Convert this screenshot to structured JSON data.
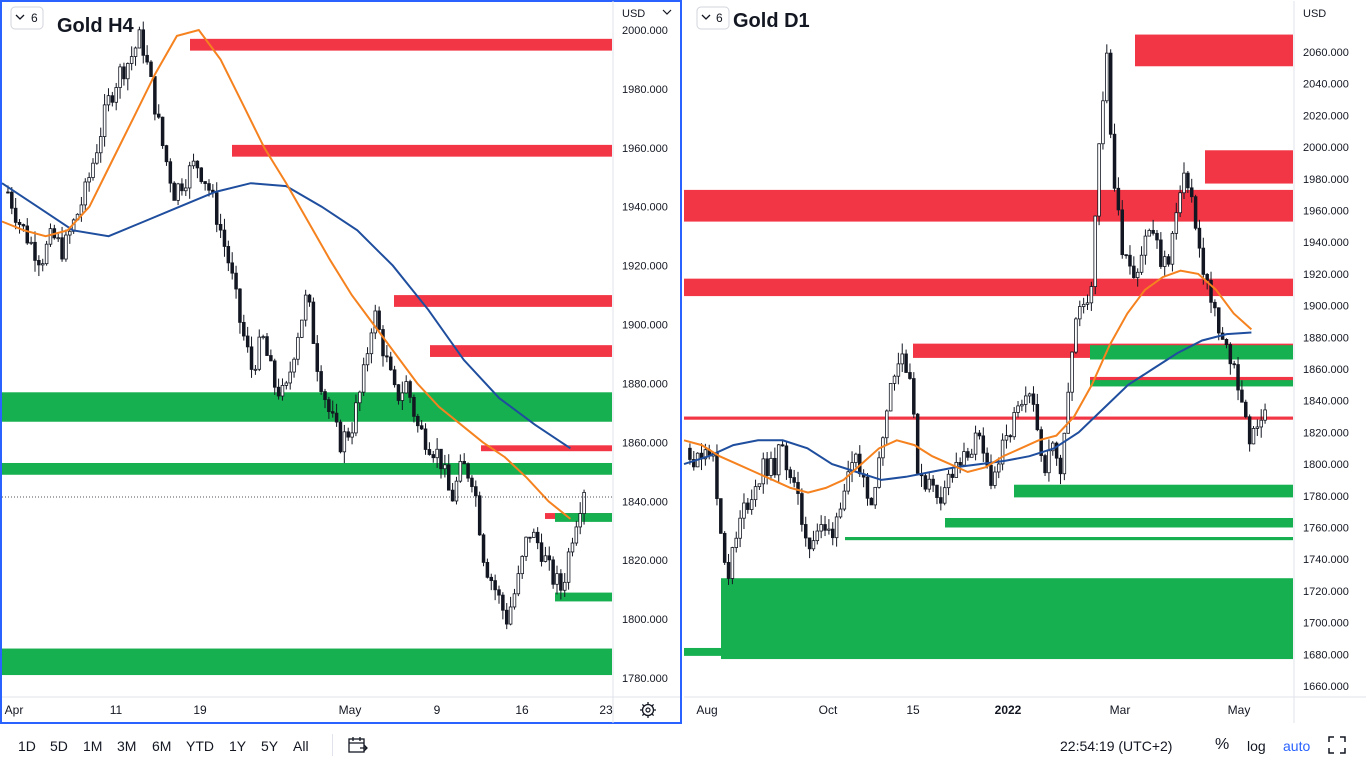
{
  "left_panel": {
    "title": "Gold H4",
    "interval_badge": "6",
    "currency": "USD",
    "price_ticks": [
      "2000.000",
      "1980.000",
      "1960.000",
      "1940.000",
      "1920.000",
      "1900.000",
      "1880.000",
      "1860.000",
      "1840.000",
      "1820.000",
      "1800.000",
      "1780.000"
    ],
    "time_labels": [
      "Apr",
      "11",
      "19",
      "May",
      "9",
      "16",
      "23"
    ],
    "settings_icon": "gear-icon"
  },
  "right_panel": {
    "title": "Gold D1",
    "interval_badge": "6",
    "currency": "USD",
    "price_ticks": [
      "2060.000",
      "2040.000",
      "2020.000",
      "2000.000",
      "1980.000",
      "1960.000",
      "1940.000",
      "1920.000",
      "1900.000",
      "1880.000",
      "1860.000",
      "1840.000",
      "1820.000",
      "1800.000",
      "1780.000",
      "1760.000",
      "1740.000",
      "1720.000",
      "1700.000",
      "1680.000",
      "1660.000"
    ],
    "time_labels": [
      "Aug",
      "Oct",
      "15",
      "2022",
      "Mar",
      "May"
    ]
  },
  "toolbar": {
    "ranges": [
      "1D",
      "5D",
      "1M",
      "3M",
      "6M",
      "YTD",
      "1Y",
      "5Y",
      "All"
    ],
    "clock": "22:54:19 (UTC+2)",
    "percent_label": "%",
    "log_label": "log",
    "auto_label": "auto"
  },
  "colors": {
    "bull_zone": "#17b050",
    "bear_zone": "#f23645",
    "ma_fast": "#f5821f",
    "ma_slow": "#1f4e9e",
    "candle": "#131722",
    "active_border": "#2962ff"
  },
  "chart_data": [
    {
      "type": "candlestick",
      "title": "Gold H4",
      "ylim": [
        1774,
        2004
      ],
      "x_ticks": [
        "Apr",
        "11",
        "19",
        "May",
        "9",
        "16",
        "23"
      ],
      "price_path": [
        1945,
        1935,
        1928,
        1922,
        1930,
        1925,
        1935,
        1945,
        1960,
        1975,
        1985,
        1990,
        1998,
        1980,
        1960,
        1945,
        1950,
        1955,
        1948,
        1935,
        1920,
        1900,
        1885,
        1895,
        1880,
        1875,
        1895,
        1910,
        1885,
        1870,
        1860,
        1865,
        1880,
        1905,
        1890,
        1875,
        1880,
        1865,
        1860,
        1855,
        1840,
        1852,
        1848,
        1820,
        1810,
        1800,
        1812,
        1830,
        1825,
        1815,
        1810,
        1830,
        1845
      ],
      "ma_fast": [
        1935,
        1932,
        1930,
        1932,
        1940,
        1955,
        1970,
        1985,
        1998,
        2000,
        1990,
        1975,
        1960,
        1948,
        1935,
        1922,
        1910,
        1900,
        1890,
        1880,
        1872,
        1866,
        1860,
        1855,
        1848,
        1840,
        1834
      ],
      "ma_slow": [
        1948,
        1940,
        1932,
        1930,
        1935,
        1940,
        1945,
        1948,
        1947,
        1940,
        1932,
        1920,
        1905,
        1888,
        1875,
        1866,
        1858
      ],
      "zones": [
        {
          "kind": "supply",
          "from_date": "Apr 19",
          "top": 1997,
          "bottom": 1993
        },
        {
          "kind": "supply",
          "from_date": "Apr 22",
          "top": 1961,
          "bottom": 1957
        },
        {
          "kind": "supply",
          "from_date": "May 6",
          "top": 1910,
          "bottom": 1906
        },
        {
          "kind": "supply",
          "from_date": "May 10",
          "top": 1893,
          "bottom": 1889
        },
        {
          "kind": "supply",
          "from_date": "May 12",
          "top": 1859,
          "bottom": 1857
        },
        {
          "kind": "supply",
          "from_date": "May 18",
          "top": 1836,
          "bottom": 1834
        },
        {
          "kind": "demand",
          "from_date": "Apr 1",
          "top": 1877,
          "bottom": 1867
        },
        {
          "kind": "demand",
          "from_date": "Apr 1",
          "top": 1853,
          "bottom": 1849
        },
        {
          "kind": "demand",
          "from_date": "May 19",
          "top": 1836,
          "bottom": 1833
        },
        {
          "kind": "demand",
          "from_date": "May 19",
          "top": 1809,
          "bottom": 1806
        },
        {
          "kind": "demand",
          "from_date": "Apr 1",
          "top": 1790,
          "bottom": 1781
        }
      ]
    },
    {
      "type": "candlestick",
      "title": "Gold D1",
      "ylim": [
        1655,
        2078
      ],
      "x_ticks": [
        "Aug",
        "Oct",
        "15",
        "2022",
        "Mar",
        "May"
      ],
      "price_path": [
        1810,
        1800,
        1815,
        1805,
        1760,
        1730,
        1750,
        1770,
        1780,
        1790,
        1800,
        1795,
        1810,
        1800,
        1780,
        1760,
        1750,
        1760,
        1755,
        1760,
        1780,
        1790,
        1800,
        1790,
        1780,
        1800,
        1840,
        1860,
        1870,
        1860,
        1800,
        1790,
        1785,
        1780,
        1790,
        1795,
        1800,
        1810,
        1815,
        1800,
        1790,
        1805,
        1815,
        1830,
        1835,
        1840,
        1820,
        1800,
        1810,
        1800,
        1850,
        1890,
        1900,
        1910,
        2000,
        2060,
        1980,
        1940,
        1930,
        1920,
        1940,
        1950,
        1930,
        1925,
        1950,
        1975,
        1980,
        1940,
        1920,
        1900,
        1880,
        1870,
        1860,
        1840,
        1815,
        1820,
        1840
      ],
      "ma_fast": [
        1815,
        1812,
        1805,
        1800,
        1795,
        1790,
        1785,
        1782,
        1785,
        1790,
        1800,
        1810,
        1815,
        1812,
        1805,
        1800,
        1795,
        1798,
        1805,
        1810,
        1815,
        1818,
        1830,
        1850,
        1875,
        1895,
        1910,
        1918,
        1922,
        1920,
        1910,
        1895,
        1885
      ],
      "ma_slow": [
        1800,
        1805,
        1812,
        1815,
        1815,
        1810,
        1800,
        1795,
        1790,
        1792,
        1795,
        1798,
        1800,
        1802,
        1805,
        1810,
        1820,
        1835,
        1850,
        1860,
        1870,
        1878,
        1882,
        1883
      ],
      "zones": [
        {
          "kind": "supply",
          "from_date": "Mar 7",
          "top": 2071,
          "bottom": 2051
        },
        {
          "kind": "supply",
          "from_date": "Apr 18",
          "top": 1998,
          "bottom": 1977
        },
        {
          "kind": "supply",
          "from_date": "Jul",
          "top": 1973,
          "bottom": 1953
        },
        {
          "kind": "supply",
          "from_date": "Jul",
          "top": 1917,
          "bottom": 1906
        },
        {
          "kind": "supply",
          "from_date": "Nov 16",
          "top": 1876,
          "bottom": 1867
        },
        {
          "kind": "supply",
          "from_date": "Feb",
          "top": 1855,
          "bottom": 1850
        },
        {
          "kind": "supply",
          "from_date": "Jul",
          "top": 1830,
          "bottom": 1828
        },
        {
          "kind": "demand",
          "from_date": "Feb",
          "top": 1875,
          "bottom": 1866
        },
        {
          "kind": "demand",
          "from_date": "Feb",
          "top": 1853,
          "bottom": 1849
        },
        {
          "kind": "demand",
          "from_date": "Jan",
          "top": 1787,
          "bottom": 1779
        },
        {
          "kind": "demand",
          "from_date": "Dec",
          "top": 1766,
          "bottom": 1760
        },
        {
          "kind": "demand",
          "from_date": "Nov",
          "top": 1754,
          "bottom": 1752
        },
        {
          "kind": "demand",
          "from_date": "Aug",
          "top": 1728,
          "bottom": 1677
        },
        {
          "kind": "demand",
          "from_date": "Jul",
          "top": 1684,
          "bottom": 1679
        }
      ]
    }
  ]
}
